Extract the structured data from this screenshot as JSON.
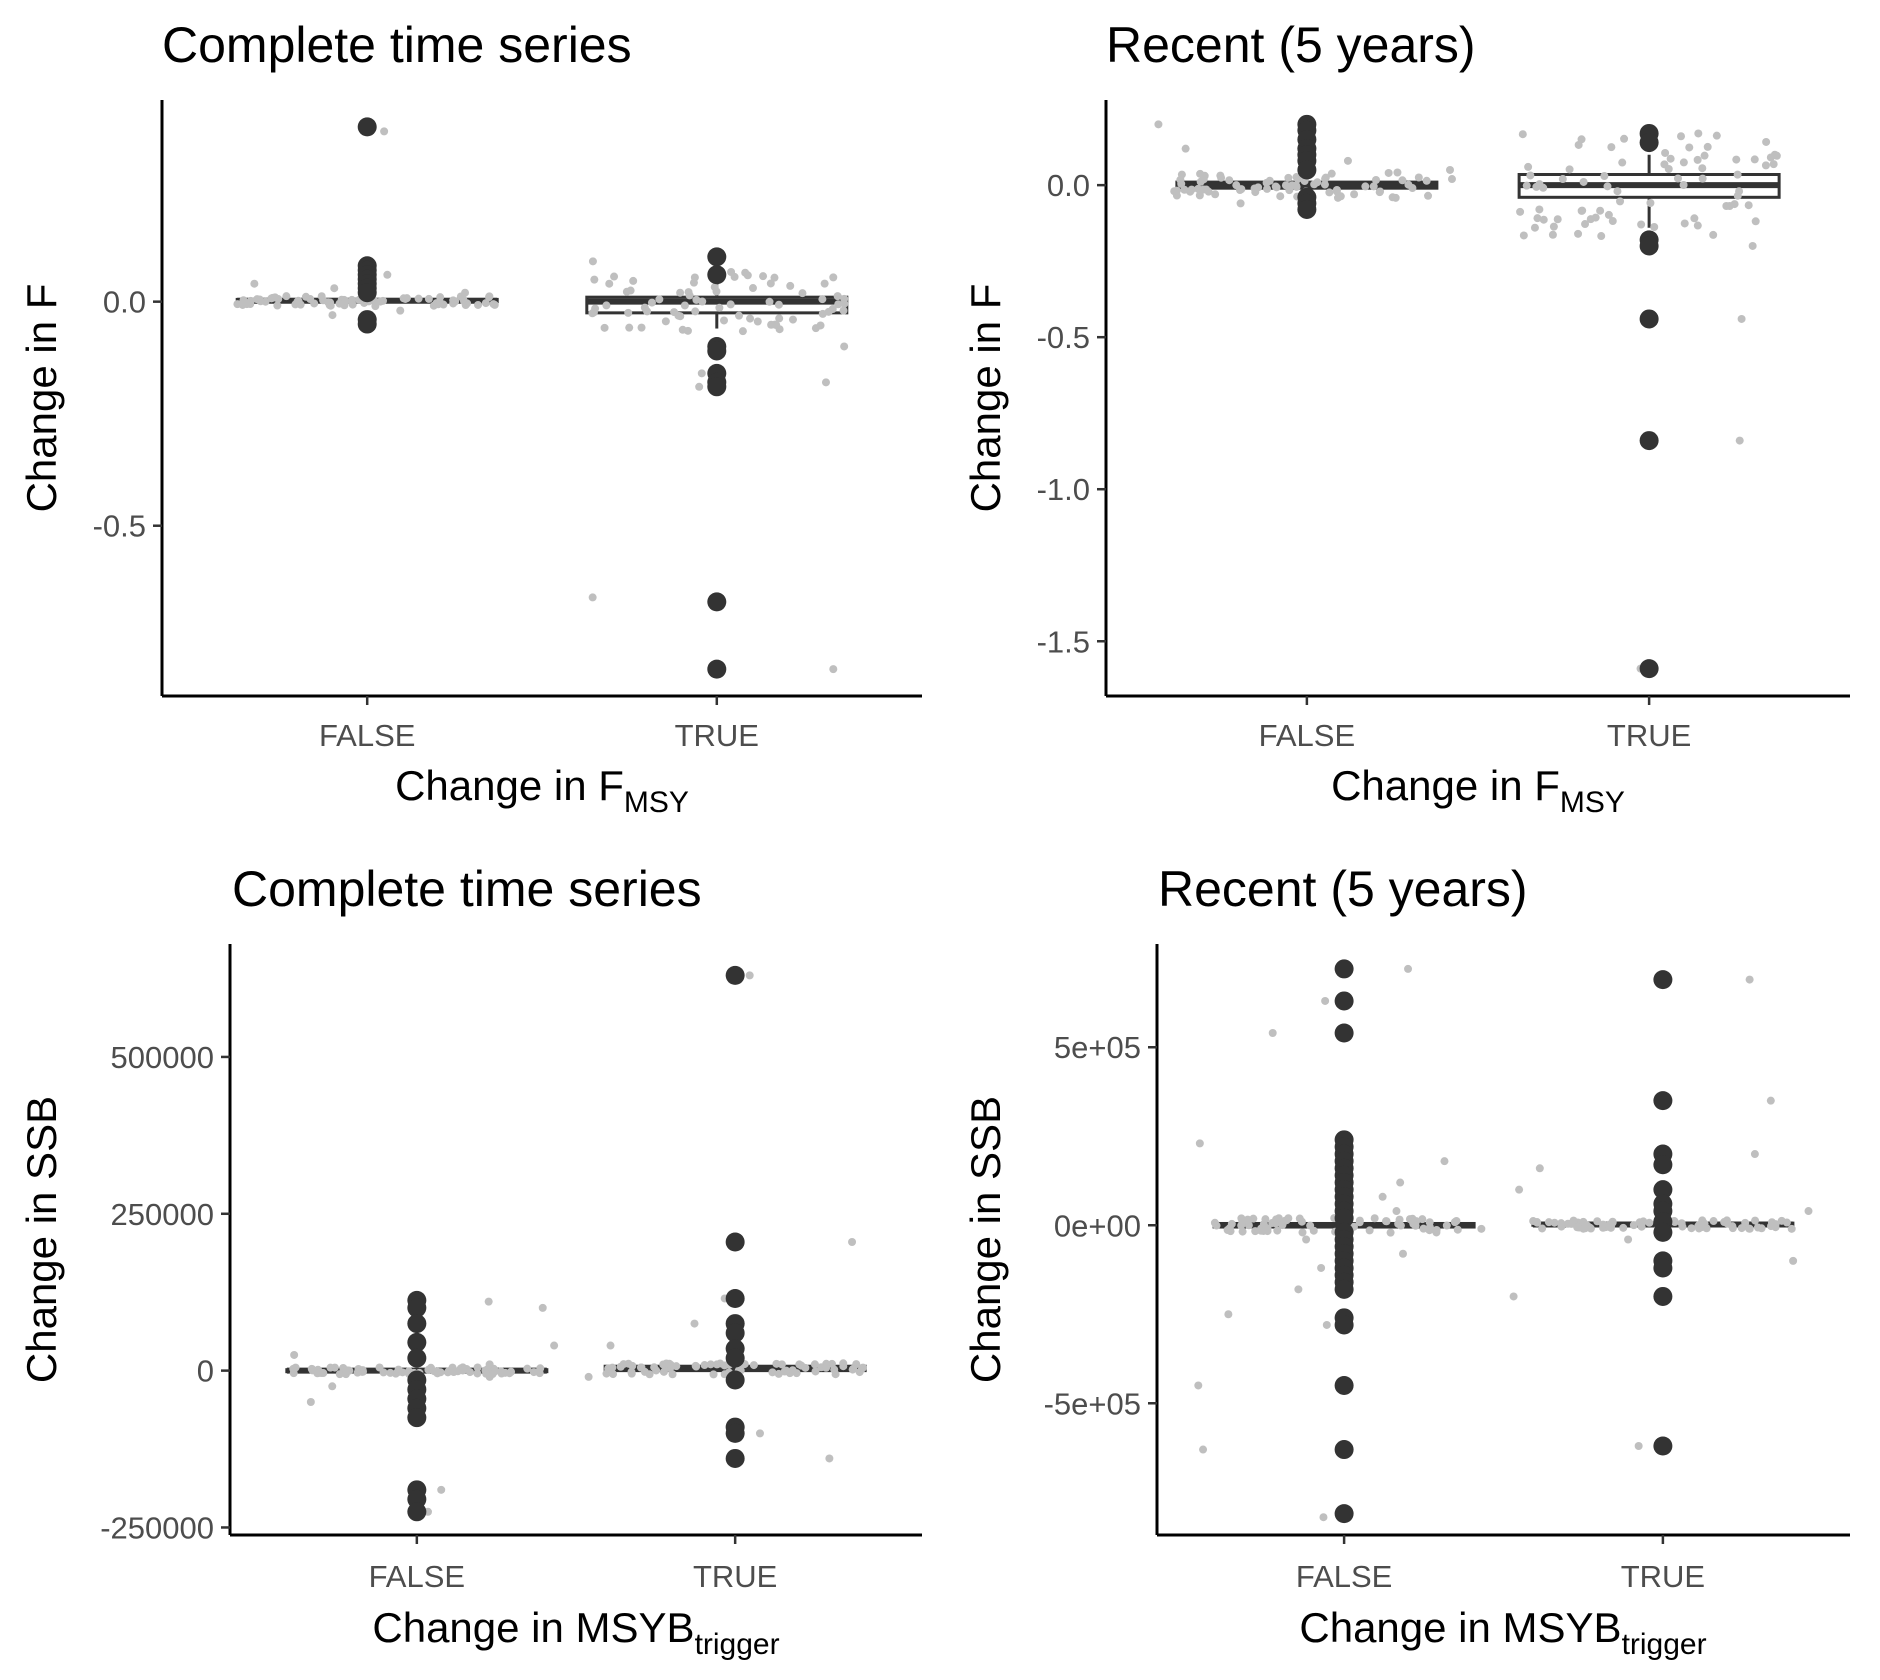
{
  "colors": {
    "outlier": "#333333",
    "jitter": "#bfbfbf",
    "box_stroke": "#333333",
    "box_fill": "#ffffff",
    "axis": "#000000",
    "tick_text": "#4d4d4d"
  },
  "chart_data": [
    {
      "type": "boxplot",
      "title": "Complete time series",
      "xlabel": "Change in F",
      "xlabel_sub": "MSY",
      "ylabel": "Change in F",
      "categories": [
        "FALSE",
        "TRUE"
      ],
      "ylim": [
        -0.88,
        0.45
      ],
      "yticks": [
        0.0,
        -0.5
      ],
      "ytick_labels": [
        "0.0",
        "-0.5"
      ],
      "boxes": [
        {
          "category": "FALSE",
          "q1": 0.0,
          "median": 0.002,
          "q3": 0.005,
          "whisker_low": -0.004,
          "whisker_high": 0.012
        },
        {
          "category": "TRUE",
          "q1": -0.025,
          "median": 0.0,
          "q3": 0.01,
          "whisker_low": -0.06,
          "whisker_high": 0.04
        }
      ],
      "outliers": [
        {
          "category": "FALSE",
          "values": [
            0.39,
            0.08,
            0.07,
            0.06,
            0.05,
            0.04,
            0.03,
            0.02,
            -0.04,
            -0.05
          ]
        },
        {
          "category": "TRUE",
          "values": [
            0.1,
            0.06,
            -0.1,
            -0.11,
            -0.16,
            -0.18,
            -0.19,
            -0.67,
            -0.82
          ]
        }
      ],
      "jitter_offsets": [
        {
          "category": "FALSE",
          "values": [
            0.38,
            0.06,
            0.04,
            0.03,
            0.02,
            0.01,
            0.0,
            -0.01,
            -0.02,
            -0.03
          ]
        },
        {
          "category": "TRUE",
          "values": [
            0.09,
            0.04,
            0.02,
            -0.02,
            -0.04,
            -0.1,
            -0.16,
            -0.18,
            -0.19,
            -0.66,
            -0.82
          ]
        }
      ]
    },
    {
      "type": "boxplot",
      "title": "Recent (5 years)",
      "xlabel": "Change in F",
      "xlabel_sub": "MSY",
      "ylabel": "Change in F",
      "categories": [
        "FALSE",
        "TRUE"
      ],
      "ylim": [
        -1.68,
        0.28
      ],
      "yticks": [
        0.0,
        -0.5,
        -1.0,
        -1.5
      ],
      "ytick_labels": [
        "0.0",
        "-0.5",
        "-1.0",
        "-1.5"
      ],
      "boxes": [
        {
          "category": "FALSE",
          "q1": -0.01,
          "median": 0.0,
          "q3": 0.01,
          "whisker_low": -0.03,
          "whisker_high": 0.03
        },
        {
          "category": "TRUE",
          "q1": -0.04,
          "median": 0.0,
          "q3": 0.035,
          "whisker_low": -0.14,
          "whisker_high": 0.1
        }
      ],
      "outliers": [
        {
          "category": "FALSE",
          "values": [
            0.2,
            0.18,
            0.15,
            0.12,
            0.1,
            0.08,
            0.05,
            -0.04,
            -0.06,
            -0.08
          ]
        },
        {
          "category": "TRUE",
          "values": [
            0.17,
            0.14,
            -0.18,
            -0.2,
            -0.44,
            -0.84,
            -1.59
          ]
        }
      ],
      "jitter_offsets": [
        {
          "category": "FALSE",
          "values": [
            0.2,
            0.12,
            0.08,
            0.05,
            0.02,
            0.0,
            -0.02,
            -0.04,
            -0.06
          ]
        },
        {
          "category": "TRUE",
          "values": [
            0.17,
            0.1,
            0.06,
            0.02,
            -0.02,
            -0.08,
            -0.14,
            -0.2,
            -0.44,
            -0.84,
            -1.59
          ]
        }
      ]
    },
    {
      "type": "boxplot",
      "title": "Complete time series",
      "xlabel": "Change in MSYB",
      "xlabel_sub": "trigger",
      "ylabel": "Change in SSB",
      "categories": [
        "FALSE",
        "TRUE"
      ],
      "ylim": [
        -262000,
        680000
      ],
      "yticks": [
        500000,
        250000,
        0,
        -250000
      ],
      "ytick_labels": [
        "500000",
        "250000",
        "0",
        "-250000"
      ],
      "boxes": [
        {
          "category": "FALSE",
          "q1": -1500,
          "median": 0,
          "q3": 1500,
          "whisker_low": -4000,
          "whisker_high": 4000
        },
        {
          "category": "TRUE",
          "q1": 0,
          "median": 3000,
          "q3": 7000,
          "whisker_low": -4000,
          "whisker_high": 9000
        }
      ],
      "outliers": [
        {
          "category": "FALSE",
          "values": [
            112000,
            100000,
            75000,
            45000,
            20000,
            -15000,
            -30000,
            -45000,
            -60000,
            -75000,
            -190000,
            -205000,
            -225000
          ]
        },
        {
          "category": "TRUE",
          "values": [
            630000,
            205000,
            115000,
            75000,
            60000,
            35000,
            20000,
            -15000,
            -90000,
            -100000,
            -140000
          ]
        }
      ],
      "jitter_offsets": [
        {
          "category": "FALSE",
          "values": [
            110000,
            100000,
            40000,
            25000,
            10000,
            -10000,
            -25000,
            -50000,
            -190000,
            -225000
          ]
        },
        {
          "category": "TRUE",
          "values": [
            630000,
            205000,
            115000,
            75000,
            40000,
            10000,
            -10000,
            -100000,
            -140000
          ]
        }
      ]
    },
    {
      "type": "boxplot",
      "title": "Recent (5 years)",
      "xlabel": "Change in MSYB",
      "xlabel_sub": "trigger",
      "ylabel": "Change in SSB",
      "categories": [
        "FALSE",
        "TRUE"
      ],
      "ylim": [
        -870000,
        790000
      ],
      "yticks": [
        500000,
        0,
        -500000
      ],
      "ytick_labels": [
        "5e+05",
        "0e+00",
        "-5e+05"
      ],
      "boxes": [
        {
          "category": "FALSE",
          "q1": -5000,
          "median": 0,
          "q3": 5000,
          "whisker_low": -15000,
          "whisker_high": 15000
        },
        {
          "category": "TRUE",
          "q1": 0,
          "median": 2000,
          "q3": 6000,
          "whisker_low": -5000,
          "whisker_high": 12000
        }
      ],
      "outliers": [
        {
          "category": "FALSE",
          "values": [
            720000,
            630000,
            540000,
            240000,
            220000,
            200000,
            180000,
            160000,
            140000,
            120000,
            100000,
            80000,
            60000,
            40000,
            20000,
            -20000,
            -40000,
            -60000,
            -80000,
            -100000,
            -120000,
            -140000,
            -160000,
            -180000,
            -260000,
            -280000,
            -450000,
            -630000,
            -810000
          ]
        },
        {
          "category": "TRUE",
          "values": [
            690000,
            350000,
            200000,
            170000,
            100000,
            60000,
            40000,
            10000,
            -20000,
            -100000,
            -120000,
            -200000,
            -620000
          ]
        }
      ],
      "jitter_offsets": [
        {
          "category": "FALSE",
          "values": [
            720000,
            630000,
            540000,
            230000,
            180000,
            120000,
            80000,
            40000,
            10000,
            -10000,
            -40000,
            -80000,
            -120000,
            -180000,
            -250000,
            -280000,
            -450000,
            -630000,
            -820000
          ]
        },
        {
          "category": "TRUE",
          "values": [
            690000,
            350000,
            200000,
            160000,
            100000,
            40000,
            10000,
            -10000,
            -40000,
            -100000,
            -200000,
            -620000
          ]
        }
      ]
    }
  ]
}
